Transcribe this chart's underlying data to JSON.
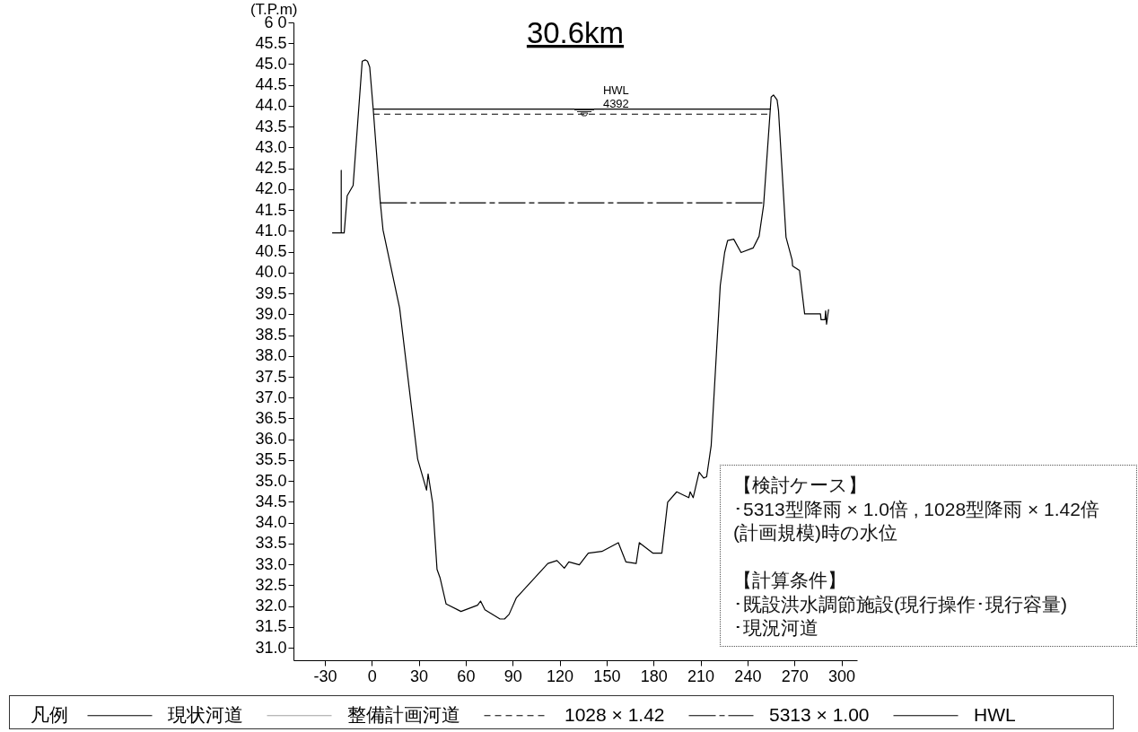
{
  "chart_data": {
    "type": "line",
    "title": "30.6km",
    "ylabel": "(T.P.m)",
    "legend_title": "凡例",
    "legend": "bottom",
    "grid": false,
    "xlim": [
      -50,
      310
    ],
    "ylim": [
      30.7,
      46
    ],
    "xticks": [
      -30,
      0,
      30,
      60,
      90,
      120,
      150,
      180,
      210,
      240,
      270,
      300
    ],
    "yticks": [
      {
        "value": 31,
        "label": "31.0"
      },
      31.5,
      {
        "value": 32,
        "label": "32.0"
      },
      32.5,
      {
        "value": 33,
        "label": "33.0"
      },
      33.5,
      {
        "value": 34,
        "label": "34.0"
      },
      34.5,
      {
        "value": 35,
        "label": "35.0"
      },
      35.5,
      {
        "value": 36,
        "label": "36.0"
      },
      36.5,
      {
        "value": 37,
        "label": "37.0"
      },
      37.5,
      {
        "value": 38,
        "label": "38.0"
      },
      38.5,
      {
        "value": 39,
        "label": "39.0"
      },
      39.5,
      {
        "value": 40,
        "label": "40.0"
      },
      40.5,
      {
        "value": 41,
        "label": "41.0"
      },
      41.5,
      {
        "value": 42,
        "label": "42.0"
      },
      42.5,
      {
        "value": 43,
        "label": "43.0"
      },
      43.5,
      {
        "value": 44,
        "label": "44.0"
      },
      44.5,
      {
        "value": 45,
        "label": "45.0"
      },
      45.5,
      {
        "value": 46,
        "label": "6 0"
      }
    ],
    "series": [
      {
        "name": "現状河道",
        "color": "#000000",
        "line_style": "solid",
        "x": [
          -25.3,
          -19.5,
          -19.5,
          -19.5,
          -17.6,
          -15.7,
          -11.9,
          -6.1,
          -4.2,
          -2.7,
          -1.3,
          1.0,
          5.3,
          7.2,
          17.8,
          29.3,
          35.0,
          36.0,
          38.9,
          41.7,
          43.6,
          47.5,
          57.0,
          67.6,
          69.5,
          72.3,
          81.9,
          84.8,
          87.7,
          92.4,
          112.5,
          118.3,
          123.0,
          125.9,
          132.6,
          138.3,
          147.0,
          157.5,
          162.3,
          168.9,
          170.9,
          179.5,
          185.3,
          189.0,
          194.8,
          202.5,
          203.4,
          205.3,
          209.1,
          212.0,
          213.9,
          216.8,
          222.6,
          225.4,
          227.3,
          231.2,
          235.9,
          243.6,
          247.4,
          250.3,
          255.1,
          256.6,
          258.9,
          259.8,
          264.6,
          268.5,
          268.8,
          273.2,
          276.5,
          286.6,
          287.0,
          289.5,
          289.9,
          290.5,
          291.8
        ],
        "values": [
          40.95,
          40.95,
          42.45,
          40.95,
          40.95,
          41.84,
          42.09,
          45.07,
          45.1,
          45.07,
          44.93,
          43.89,
          41.75,
          41.02,
          39.15,
          35.53,
          34.78,
          35.17,
          34.47,
          32.88,
          32.68,
          32.05,
          31.87,
          32.02,
          32.12,
          31.91,
          31.69,
          31.69,
          31.8,
          32.2,
          33.02,
          33.09,
          32.91,
          33.06,
          32.99,
          33.27,
          33.31,
          33.52,
          33.06,
          33.02,
          33.52,
          33.27,
          33.27,
          34.49,
          34.74,
          34.6,
          34.74,
          34.6,
          35.21,
          35.07,
          35.1,
          35.85,
          39.69,
          40.48,
          40.77,
          40.8,
          40.48,
          40.59,
          40.87,
          41.62,
          44.21,
          44.26,
          44.14,
          43.89,
          40.85,
          40.3,
          40.16,
          40.05,
          39.01,
          39.01,
          38.87,
          38.87,
          39.08,
          38.76,
          39.12
        ]
      },
      {
        "name": "整備計画河道",
        "color": "#a0a0a0",
        "line_style": "solid"
      },
      {
        "name": "1028 × 1.42",
        "color": "#000000",
        "line_style": "dashed",
        "x": [
          1.0,
          254.1
        ],
        "values": [
          43.8,
          43.8
        ]
      },
      {
        "name": "5313 × 1.00",
        "color": "#000000",
        "line_style": "dashdot",
        "x": [
          5.3,
          250.3
        ],
        "values": [
          41.67,
          41.67
        ]
      },
      {
        "name": "HWL",
        "color": "#000000",
        "line_style": "solid",
        "x": [
          1.0,
          254.9
        ],
        "values": [
          43.92,
          43.92
        ]
      }
    ],
    "annotations": [
      {
        "text": "HWL",
        "x": 156,
        "y": 43.92
      },
      {
        "text": "4392",
        "x": 156,
        "y": 43.92
      },
      "【検討ケース】",
      "･5313型降雨 × 1.0倍 , 1028型降雨 × 1.42倍",
      "(計画規模)時の水位",
      "【計算条件】",
      "･既設洪水調節施設(現行操作･現行容量)",
      "･現況河道"
    ]
  }
}
